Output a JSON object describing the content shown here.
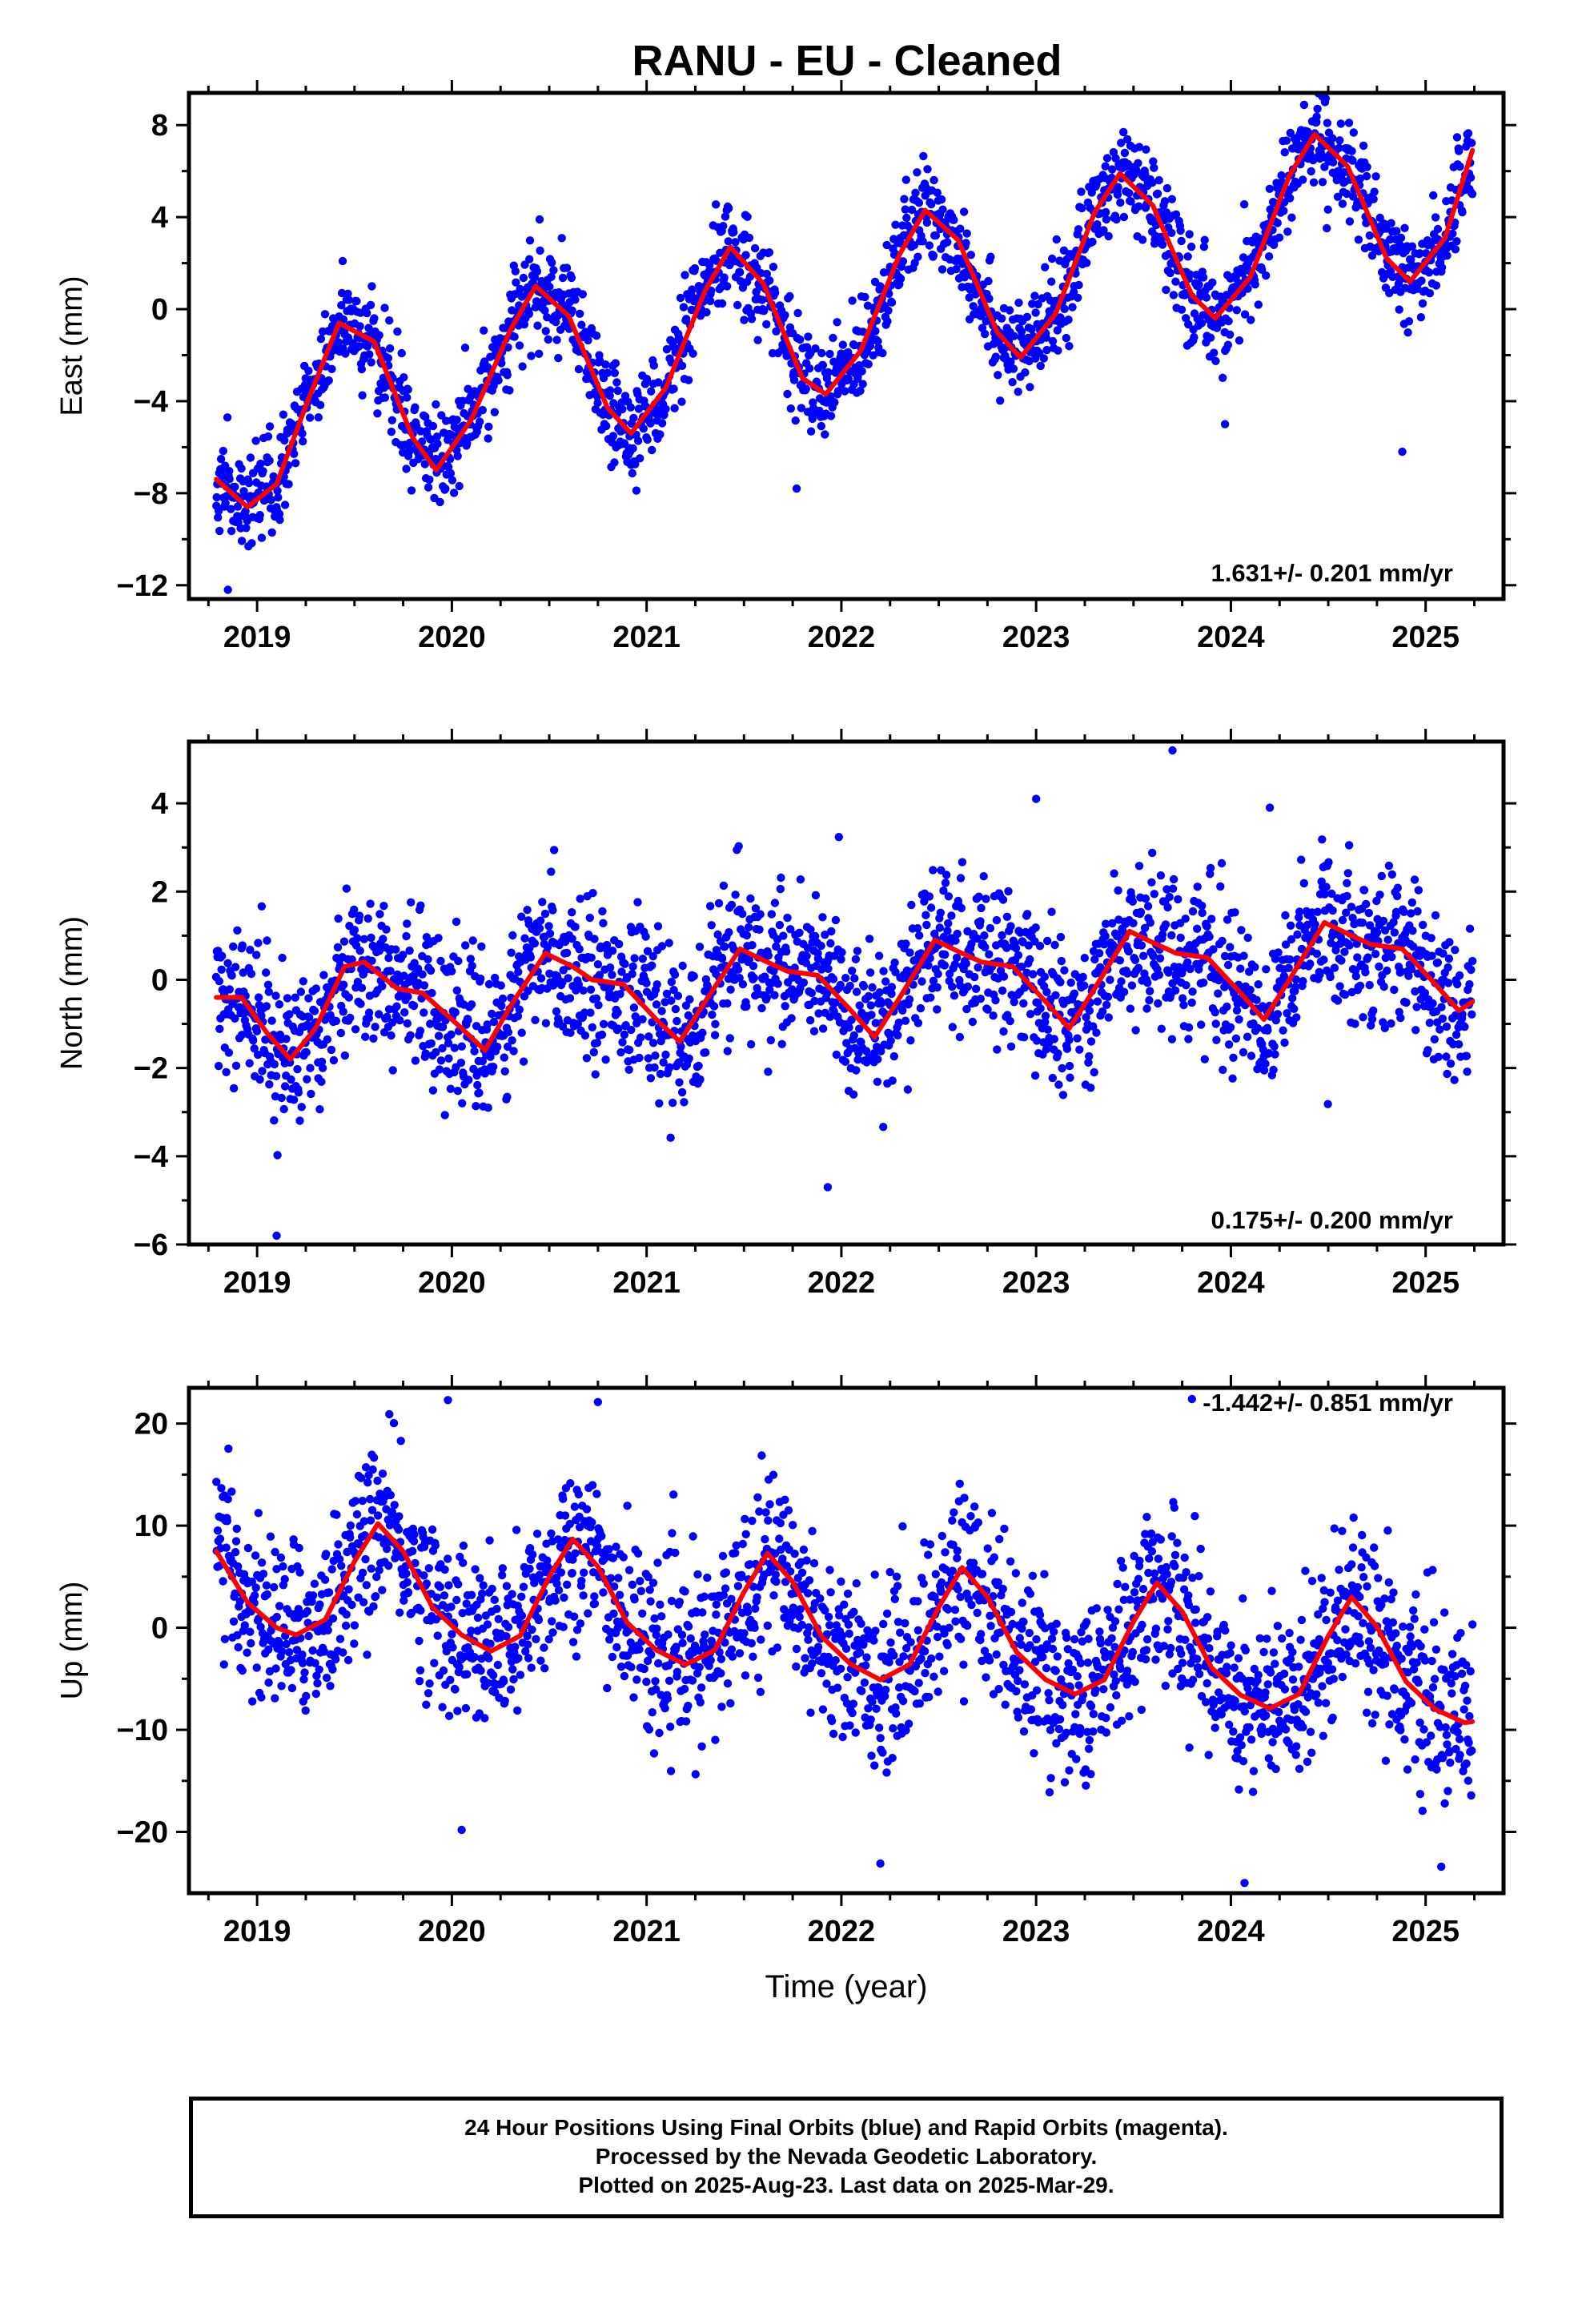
{
  "page": {
    "footer_lines": [
      "24 Hour Positions Using Final Orbits (blue) and Rapid Orbits (magenta).",
      "Processed by the Nevada Geodetic Laboratory.",
      "Plotted on 2025-Aug-23. Last data on 2025-Mar-29."
    ]
  },
  "chart_data": [
    {
      "type": "scatter",
      "title": "RANU  - EU - Cleaned",
      "xlabel": "",
      "ylabel": "East (mm)",
      "xlim": [
        2018.65,
        2025.4
      ],
      "ylim": [
        -12.6,
        9.4
      ],
      "x_ticks": [
        2019,
        2020,
        2021,
        2022,
        2023,
        2024,
        2025
      ],
      "x_tick_labels": [
        "2019",
        "2020",
        "2021",
        "2022",
        "2023",
        "2024",
        "2025"
      ],
      "y_ticks": [
        -12,
        -8,
        -4,
        0,
        4,
        8
      ],
      "y_tick_labels": [
        "−12",
        "−8",
        "−4",
        "0",
        "4",
        "8"
      ],
      "rate_annotation": "1.631+/- 0.201 mm/yr",
      "colors": {
        "points": "#0000ff",
        "model": "#ff0000"
      },
      "series": [
        {
          "kind": "points",
          "x_start": 2018.79,
          "x_end": 2025.24,
          "count": 2150,
          "model": {
            "offset": -2.1,
            "rate": 1.631,
            "t0": 2022.0,
            "annual_amp": 4.0,
            "annual_peak": 0.41,
            "semiannual_amp": 0.35,
            "semiannual_peak": 0.2
          },
          "scatter_sd": 1.05,
          "outliers": [
            {
              "x": 2021.77,
              "y": -7.8
            },
            {
              "x": 2024.88,
              "y": -6.2
            },
            {
              "x": 2018.85,
              "y": -12.2
            },
            {
              "x": 2023.97,
              "y": -5.0
            }
          ]
        },
        {
          "kind": "model_line",
          "curve": [
            [
              2018.79,
              -7.4
            ],
            [
              2018.95,
              -8.6
            ],
            [
              2019.1,
              -7.6
            ],
            [
              2019.25,
              -4.2
            ],
            [
              2019.42,
              -0.6
            ],
            [
              2019.6,
              -1.4
            ],
            [
              2019.8,
              -5.6
            ],
            [
              2019.92,
              -7.0
            ],
            [
              2020.1,
              -4.8
            ],
            [
              2020.3,
              -0.9
            ],
            [
              2020.43,
              1.0
            ],
            [
              2020.6,
              -0.3
            ],
            [
              2020.8,
              -4.3
            ],
            [
              2020.92,
              -5.4
            ],
            [
              2021.1,
              -3.4
            ],
            [
              2021.3,
              0.8
            ],
            [
              2021.43,
              2.7
            ],
            [
              2021.6,
              1.1
            ],
            [
              2021.8,
              -3.0
            ],
            [
              2021.92,
              -3.7
            ],
            [
              2022.1,
              -1.8
            ],
            [
              2022.3,
              2.4
            ],
            [
              2022.43,
              4.3
            ],
            [
              2022.6,
              3.0
            ],
            [
              2022.8,
              -1.0
            ],
            [
              2022.92,
              -2.1
            ],
            [
              2023.1,
              -0.2
            ],
            [
              2023.3,
              4.2
            ],
            [
              2023.43,
              5.9
            ],
            [
              2023.6,
              4.5
            ],
            [
              2023.8,
              0.6
            ],
            [
              2023.92,
              -0.4
            ],
            [
              2024.1,
              1.4
            ],
            [
              2024.3,
              5.8
            ],
            [
              2024.43,
              7.6
            ],
            [
              2024.6,
              6.2
            ],
            [
              2024.8,
              2.2
            ],
            [
              2024.92,
              1.2
            ],
            [
              2025.1,
              3.1
            ],
            [
              2025.24,
              6.9
            ]
          ]
        }
      ]
    },
    {
      "type": "scatter",
      "title": "",
      "xlabel": "",
      "ylabel": "North (mm)",
      "xlim": [
        2018.65,
        2025.4
      ],
      "ylim": [
        -6.0,
        5.4
      ],
      "x_ticks": [
        2019,
        2020,
        2021,
        2022,
        2023,
        2024,
        2025
      ],
      "x_tick_labels": [
        "2019",
        "2020",
        "2021",
        "2022",
        "2023",
        "2024",
        "2025"
      ],
      "y_ticks": [
        -6,
        -4,
        -2,
        0,
        2,
        4
      ],
      "y_tick_labels": [
        "−6",
        "−4",
        "−2",
        "0",
        "2",
        "4"
      ],
      "rate_annotation": "0.175+/- 0.200 mm/yr",
      "colors": {
        "points": "#0000ff",
        "model": "#ff0000"
      },
      "series": [
        {
          "kind": "points",
          "x_start": 2018.79,
          "x_end": 2025.24,
          "count": 2150,
          "scatter_sd": 0.85,
          "outliers": [
            {
              "x": 2019.1,
              "y": -5.8
            },
            {
              "x": 2021.93,
              "y": -4.7
            },
            {
              "x": 2023.7,
              "y": 5.2
            },
            {
              "x": 2023.0,
              "y": 4.1
            },
            {
              "x": 2024.2,
              "y": 3.9
            }
          ]
        },
        {
          "kind": "model_line",
          "curve": [
            [
              2018.79,
              -0.4
            ],
            [
              2018.92,
              -0.4
            ],
            [
              2019.05,
              -1.2
            ],
            [
              2019.17,
              -1.8
            ],
            [
              2019.3,
              -1.1
            ],
            [
              2019.45,
              0.3
            ],
            [
              2019.55,
              0.4
            ],
            [
              2019.72,
              -0.2
            ],
            [
              2019.85,
              -0.3
            ],
            [
              2020.05,
              -1.1
            ],
            [
              2020.17,
              -1.6
            ],
            [
              2020.3,
              -0.6
            ],
            [
              2020.48,
              0.6
            ],
            [
              2020.62,
              0.3
            ],
            [
              2020.72,
              0.0
            ],
            [
              2020.88,
              -0.1
            ],
            [
              2021.05,
              -0.9
            ],
            [
              2021.17,
              -1.4
            ],
            [
              2021.3,
              -0.5
            ],
            [
              2021.48,
              0.7
            ],
            [
              2021.62,
              0.4
            ],
            [
              2021.72,
              0.2
            ],
            [
              2021.88,
              0.1
            ],
            [
              2022.05,
              -0.7
            ],
            [
              2022.17,
              -1.3
            ],
            [
              2022.3,
              -0.4
            ],
            [
              2022.48,
              0.9
            ],
            [
              2022.62,
              0.6
            ],
            [
              2022.72,
              0.4
            ],
            [
              2022.88,
              0.3
            ],
            [
              2023.05,
              -0.5
            ],
            [
              2023.17,
              -1.1
            ],
            [
              2023.3,
              -0.2
            ],
            [
              2023.48,
              1.1
            ],
            [
              2023.62,
              0.8
            ],
            [
              2023.72,
              0.6
            ],
            [
              2023.88,
              0.5
            ],
            [
              2024.05,
              -0.3
            ],
            [
              2024.17,
              -0.9
            ],
            [
              2024.3,
              0.0
            ],
            [
              2024.48,
              1.3
            ],
            [
              2024.62,
              1.0
            ],
            [
              2024.72,
              0.8
            ],
            [
              2024.88,
              0.7
            ],
            [
              2025.05,
              -0.1
            ],
            [
              2025.17,
              -0.7
            ],
            [
              2025.24,
              -0.5
            ]
          ]
        }
      ]
    },
    {
      "type": "scatter",
      "title": "",
      "xlabel": "Time (year)",
      "ylabel": "Up (mm)",
      "xlim": [
        2018.65,
        2025.4
      ],
      "ylim": [
        -26,
        23.5
      ],
      "x_ticks": [
        2019,
        2020,
        2021,
        2022,
        2023,
        2024,
        2025
      ],
      "x_tick_labels": [
        "2019",
        "2020",
        "2021",
        "2022",
        "2023",
        "2024",
        "2025"
      ],
      "y_ticks": [
        -20,
        -10,
        0,
        10,
        20
      ],
      "y_tick_labels": [
        "−20",
        "−10",
        "0",
        "10",
        "20"
      ],
      "rate_annotation": "-1.442+/- 0.851 mm/yr",
      "colors": {
        "points": "#0000ff",
        "model": "#ff0000"
      },
      "series": [
        {
          "kind": "points",
          "x_start": 2018.79,
          "x_end": 2025.24,
          "count": 2150,
          "scatter_sd": 4.2,
          "outliers": [
            {
              "x": 2019.98,
              "y": 22.3
            },
            {
              "x": 2020.75,
              "y": 22.1
            },
            {
              "x": 2023.8,
              "y": 22.4
            },
            {
              "x": 2020.05,
              "y": -19.8
            },
            {
              "x": 2022.2,
              "y": -23.1
            },
            {
              "x": 2024.07,
              "y": -25.0
            },
            {
              "x": 2025.08,
              "y": -23.4
            }
          ]
        },
        {
          "kind": "model_line",
          "curve": [
            [
              2018.79,
              7.5
            ],
            [
              2018.95,
              2.5
            ],
            [
              2019.1,
              0.0
            ],
            [
              2019.2,
              -0.7
            ],
            [
              2019.35,
              0.8
            ],
            [
              2019.5,
              6.5
            ],
            [
              2019.62,
              10.2
            ],
            [
              2019.75,
              7.5
            ],
            [
              2019.9,
              2.0
            ],
            [
              2020.05,
              -0.7
            ],
            [
              2020.2,
              -2.3
            ],
            [
              2020.35,
              -0.8
            ],
            [
              2020.5,
              5.0
            ],
            [
              2020.62,
              8.7
            ],
            [
              2020.75,
              6.0
            ],
            [
              2020.9,
              0.5
            ],
            [
              2021.05,
              -2.2
            ],
            [
              2021.2,
              -3.6
            ],
            [
              2021.35,
              -2.2
            ],
            [
              2021.5,
              3.5
            ],
            [
              2021.62,
              7.3
            ],
            [
              2021.75,
              4.5
            ],
            [
              2021.9,
              -0.9
            ],
            [
              2022.05,
              -3.6
            ],
            [
              2022.2,
              -5.1
            ],
            [
              2022.35,
              -3.6
            ],
            [
              2022.5,
              2.0
            ],
            [
              2022.62,
              5.9
            ],
            [
              2022.75,
              3.0
            ],
            [
              2022.9,
              -2.4
            ],
            [
              2023.05,
              -5.1
            ],
            [
              2023.2,
              -6.5
            ],
            [
              2023.35,
              -5.1
            ],
            [
              2023.5,
              0.6
            ],
            [
              2023.62,
              4.4
            ],
            [
              2023.75,
              1.6
            ],
            [
              2023.9,
              -3.9
            ],
            [
              2024.05,
              -6.6
            ],
            [
              2024.2,
              -7.9
            ],
            [
              2024.35,
              -6.5
            ],
            [
              2024.5,
              -0.8
            ],
            [
              2024.62,
              3.0
            ],
            [
              2024.75,
              0.1
            ],
            [
              2024.9,
              -5.3
            ],
            [
              2025.05,
              -8.0
            ],
            [
              2025.2,
              -9.3
            ],
            [
              2025.24,
              -9.2
            ]
          ]
        }
      ]
    }
  ]
}
